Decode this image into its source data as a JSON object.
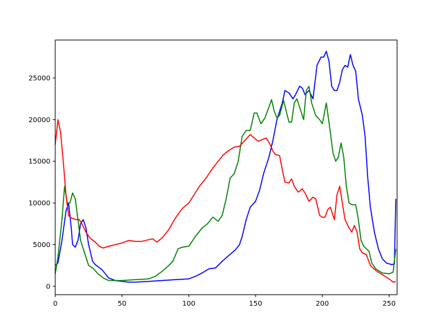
{
  "chart_data": {
    "type": "line",
    "title": "",
    "xlabel": "",
    "ylabel": "",
    "xlim": [
      0,
      256
    ],
    "ylim": [
      -1000,
      29550
    ],
    "grid": false,
    "xticks": [
      0,
      50,
      100,
      150,
      200,
      250
    ],
    "yticks": [
      0,
      5000,
      10000,
      15000,
      20000,
      25000
    ],
    "series": [
      {
        "color": "#0000ff",
        "points": [
          [
            0,
            2500
          ],
          [
            2,
            2800
          ],
          [
            5,
            5500
          ],
          [
            8,
            9000
          ],
          [
            10,
            10000
          ],
          [
            12,
            7000
          ],
          [
            13,
            5000
          ],
          [
            15,
            4700
          ],
          [
            17,
            5500
          ],
          [
            19,
            7500
          ],
          [
            21,
            8000
          ],
          [
            23,
            7000
          ],
          [
            25,
            5000
          ],
          [
            28,
            3000
          ],
          [
            30,
            2600
          ],
          [
            35,
            2000
          ],
          [
            40,
            1000
          ],
          [
            45,
            700
          ],
          [
            50,
            600
          ],
          [
            55,
            500
          ],
          [
            60,
            500
          ],
          [
            70,
            600
          ],
          [
            80,
            700
          ],
          [
            90,
            800
          ],
          [
            100,
            900
          ],
          [
            105,
            1200
          ],
          [
            110,
            1600
          ],
          [
            115,
            2100
          ],
          [
            120,
            2200
          ],
          [
            125,
            3000
          ],
          [
            130,
            3700
          ],
          [
            135,
            4400
          ],
          [
            138,
            5000
          ],
          [
            140,
            6000
          ],
          [
            143,
            8000
          ],
          [
            146,
            9500
          ],
          [
            150,
            10200
          ],
          [
            153,
            11500
          ],
          [
            156,
            13500
          ],
          [
            160,
            15500
          ],
          [
            163,
            17500
          ],
          [
            166,
            20000
          ],
          [
            170,
            22000
          ],
          [
            172,
            23500
          ],
          [
            175,
            23200
          ],
          [
            178,
            22500
          ],
          [
            180,
            23000
          ],
          [
            183,
            24000
          ],
          [
            185,
            23800
          ],
          [
            187,
            23000
          ],
          [
            190,
            23500
          ],
          [
            193,
            22500
          ],
          [
            196,
            26500
          ],
          [
            199,
            27500
          ],
          [
            201,
            27500
          ],
          [
            203,
            28200
          ],
          [
            205,
            27000
          ],
          [
            207,
            24000
          ],
          [
            209,
            23500
          ],
          [
            211,
            23500
          ],
          [
            213,
            24500
          ],
          [
            215,
            26000
          ],
          [
            217,
            26500
          ],
          [
            219,
            26300
          ],
          [
            221,
            27800
          ],
          [
            223,
            26500
          ],
          [
            225,
            25800
          ],
          [
            227,
            22500
          ],
          [
            230,
            20500
          ],
          [
            232,
            18000
          ],
          [
            234,
            13000
          ],
          [
            236,
            9500
          ],
          [
            239,
            6500
          ],
          [
            242,
            4500
          ],
          [
            245,
            3300
          ],
          [
            248,
            2800
          ],
          [
            252,
            2600
          ],
          [
            254,
            2700
          ],
          [
            255,
            10500
          ]
        ]
      },
      {
        "color": "#008000",
        "points": [
          [
            0,
            1500
          ],
          [
            2,
            3500
          ],
          [
            5,
            8000
          ],
          [
            7,
            12000
          ],
          [
            9,
            10000
          ],
          [
            11,
            10000
          ],
          [
            13,
            11200
          ],
          [
            15,
            10500
          ],
          [
            17,
            8000
          ],
          [
            19,
            5500
          ],
          [
            22,
            4000
          ],
          [
            25,
            2500
          ],
          [
            28,
            2200
          ],
          [
            32,
            1500
          ],
          [
            36,
            1000
          ],
          [
            40,
            700
          ],
          [
            50,
            700
          ],
          [
            60,
            800
          ],
          [
            70,
            900
          ],
          [
            75,
            1200
          ],
          [
            80,
            1800
          ],
          [
            85,
            2500
          ],
          [
            88,
            3000
          ],
          [
            92,
            4500
          ],
          [
            95,
            4700
          ],
          [
            100,
            4800
          ],
          [
            105,
            6000
          ],
          [
            110,
            7000
          ],
          [
            114,
            7500
          ],
          [
            118,
            8300
          ],
          [
            122,
            7800
          ],
          [
            125,
            8500
          ],
          [
            128,
            10500
          ],
          [
            131,
            13000
          ],
          [
            134,
            13500
          ],
          [
            137,
            15000
          ],
          [
            140,
            18000
          ],
          [
            143,
            18700
          ],
          [
            146,
            18700
          ],
          [
            149,
            20800
          ],
          [
            151,
            20800
          ],
          [
            154,
            19500
          ],
          [
            157,
            20200
          ],
          [
            160,
            21500
          ],
          [
            162,
            22400
          ],
          [
            164,
            21000
          ],
          [
            166,
            20200
          ],
          [
            168,
            20500
          ],
          [
            171,
            22300
          ],
          [
            173,
            21000
          ],
          [
            175,
            19700
          ],
          [
            177,
            19700
          ],
          [
            179,
            22000
          ],
          [
            181,
            22500
          ],
          [
            183,
            21500
          ],
          [
            186,
            20000
          ],
          [
            188,
            23500
          ],
          [
            190,
            24000
          ],
          [
            192,
            22000
          ],
          [
            195,
            20500
          ],
          [
            198,
            20000
          ],
          [
            200,
            19500
          ],
          [
            203,
            22000
          ],
          [
            206,
            18500
          ],
          [
            208,
            16000
          ],
          [
            210,
            15000
          ],
          [
            212,
            15500
          ],
          [
            214,
            17200
          ],
          [
            216,
            15500
          ],
          [
            218,
            12000
          ],
          [
            220,
            10000
          ],
          [
            222,
            9800
          ],
          [
            225,
            9800
          ],
          [
            227,
            8000
          ],
          [
            229,
            5500
          ],
          [
            231,
            4800
          ],
          [
            233,
            4500
          ],
          [
            235,
            4200
          ],
          [
            237,
            2800
          ],
          [
            240,
            2100
          ],
          [
            245,
            1600
          ],
          [
            250,
            1500
          ],
          [
            253,
            1700
          ],
          [
            255,
            4500
          ]
        ]
      },
      {
        "color": "#ff0000",
        "points": [
          [
            0,
            17000
          ],
          [
            2,
            20000
          ],
          [
            4,
            18500
          ],
          [
            6,
            15000
          ],
          [
            8,
            11000
          ],
          [
            10,
            8500
          ],
          [
            12,
            8200
          ],
          [
            14,
            8100
          ],
          [
            16,
            8000
          ],
          [
            18,
            8000
          ],
          [
            20,
            7500
          ],
          [
            23,
            6500
          ],
          [
            26,
            5800
          ],
          [
            30,
            5300
          ],
          [
            33,
            4800
          ],
          [
            36,
            4600
          ],
          [
            40,
            4800
          ],
          [
            45,
            5000
          ],
          [
            50,
            5200
          ],
          [
            55,
            5500
          ],
          [
            60,
            5400
          ],
          [
            65,
            5400
          ],
          [
            70,
            5600
          ],
          [
            73,
            5700
          ],
          [
            76,
            5300
          ],
          [
            80,
            5800
          ],
          [
            85,
            6800
          ],
          [
            90,
            8200
          ],
          [
            95,
            9300
          ],
          [
            100,
            10000
          ],
          [
            104,
            11000
          ],
          [
            108,
            12000
          ],
          [
            113,
            13000
          ],
          [
            118,
            14200
          ],
          [
            122,
            15000
          ],
          [
            126,
            15800
          ],
          [
            130,
            16300
          ],
          [
            134,
            16700
          ],
          [
            138,
            16800
          ],
          [
            142,
            17500
          ],
          [
            146,
            18200
          ],
          [
            149,
            17800
          ],
          [
            152,
            17400
          ],
          [
            155,
            17600
          ],
          [
            158,
            17800
          ],
          [
            161,
            17000
          ],
          [
            163,
            16200
          ],
          [
            165,
            15800
          ],
          [
            168,
            15700
          ],
          [
            170,
            14000
          ],
          [
            172,
            12500
          ],
          [
            175,
            12400
          ],
          [
            177,
            12900
          ],
          [
            179,
            12000
          ],
          [
            182,
            11300
          ],
          [
            185,
            11700
          ],
          [
            187,
            11200
          ],
          [
            190,
            10200
          ],
          [
            193,
            10700
          ],
          [
            195,
            10500
          ],
          [
            198,
            8500
          ],
          [
            200,
            8300
          ],
          [
            202,
            8300
          ],
          [
            204,
            9200
          ],
          [
            206,
            9500
          ],
          [
            208,
            8500
          ],
          [
            209,
            8000
          ],
          [
            211,
            11000
          ],
          [
            213,
            12000
          ],
          [
            215,
            10000
          ],
          [
            217,
            8000
          ],
          [
            220,
            7000
          ],
          [
            222,
            6500
          ],
          [
            224,
            7300
          ],
          [
            226,
            6500
          ],
          [
            228,
            4500
          ],
          [
            230,
            4000
          ],
          [
            233,
            3800
          ],
          [
            236,
            2500
          ],
          [
            240,
            1900
          ],
          [
            245,
            1400
          ],
          [
            250,
            900
          ],
          [
            253,
            500
          ],
          [
            255,
            600
          ]
        ]
      }
    ]
  }
}
